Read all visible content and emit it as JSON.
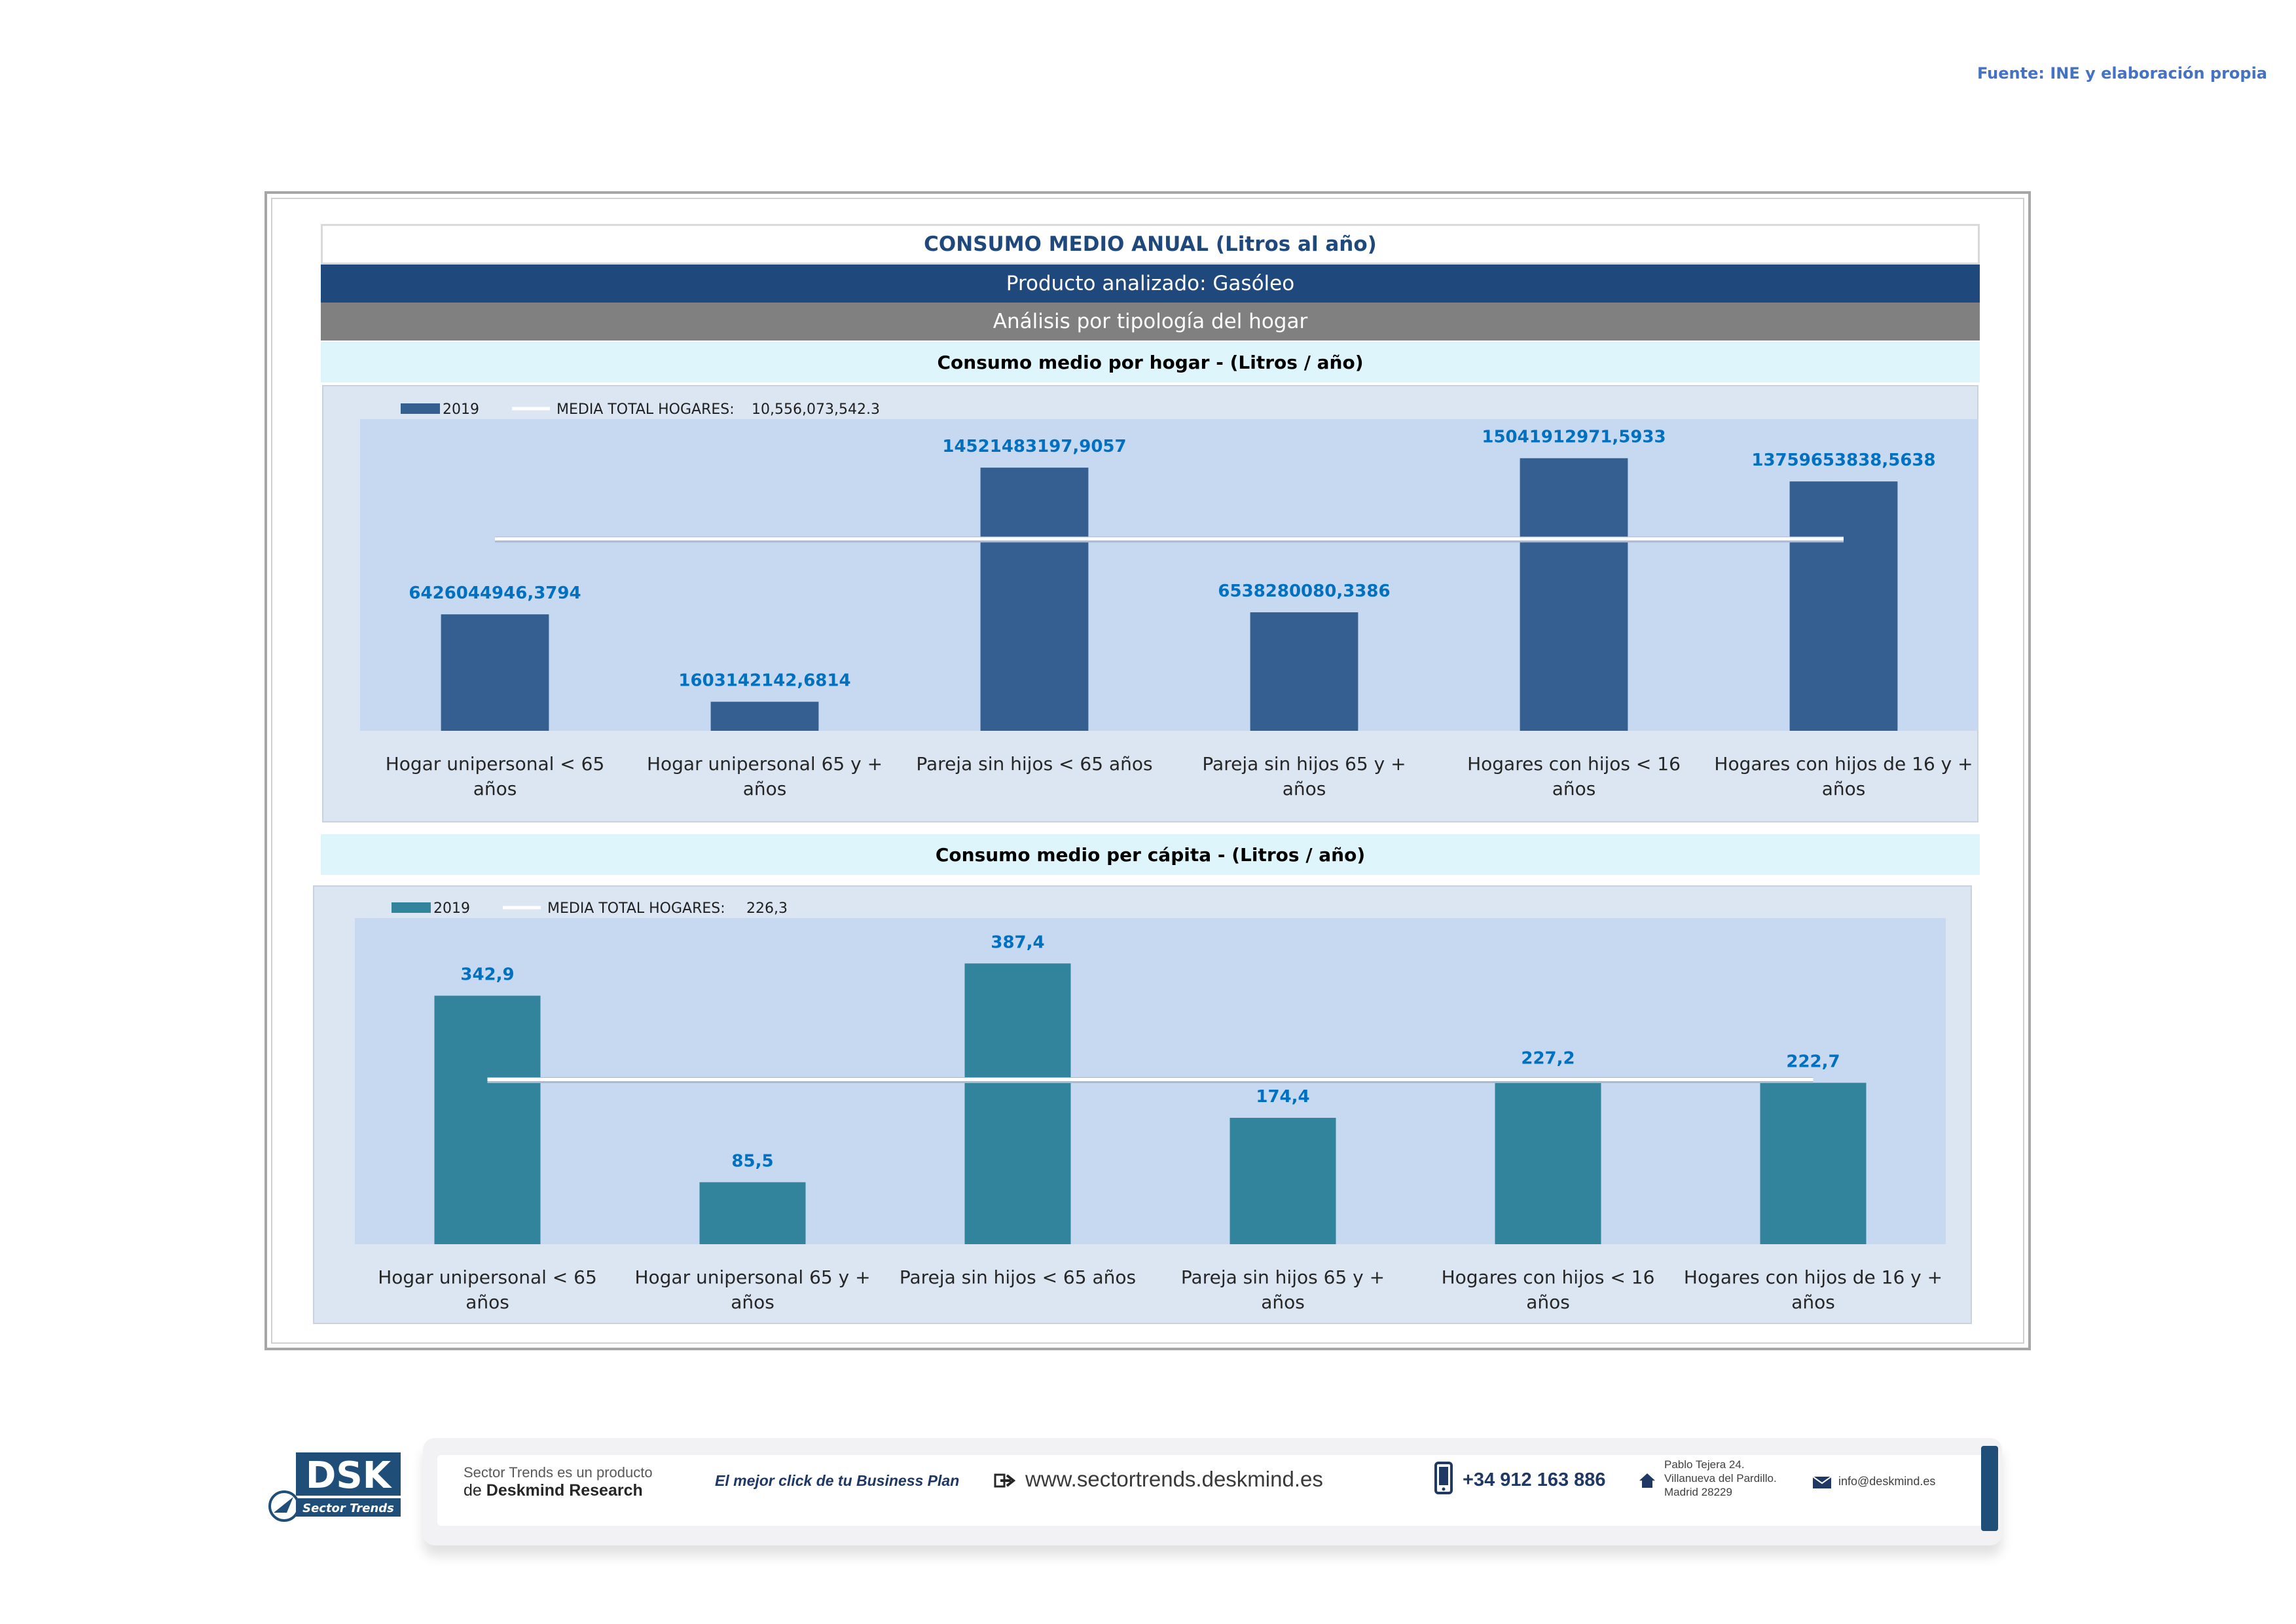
{
  "source": "Fuente: INE y elaboración propia",
  "header": {
    "title": "CONSUMO MEDIO ANUAL (Litros al año)",
    "product": "Producto analizado: Gasóleo",
    "analysis": "Análisis por tipología del hogar"
  },
  "colors": {
    "navy": "#1f497d",
    "gray": "#808080",
    "subtitle_band": "#ddf5fb",
    "panel_bg": "#dce6f2",
    "plot_bg": "#c6d9f1",
    "bar_household": "#355e91",
    "bar_percapita": "#31849b",
    "label_blue": "#0070c0",
    "average_line": "#ffffff"
  },
  "chart_data": [
    {
      "type": "bar",
      "subtitle": "Consumo medio por hogar -  (Litros / año)",
      "categories": [
        "Hogar unipersonal < 65 años",
        "Hogar unipersonal  65 y + años",
        "Pareja sin hijos < 65 años",
        "Pareja sin hijos 65 y + años",
        "Hogares con hijos < 16 años",
        "Hogares con hijos de 16 y + años"
      ],
      "series": [
        {
          "name": "2019",
          "values": [
            6426044946.3794,
            1603142142.6814,
            14521483197.9057,
            6538280080.3386,
            15041912971.5933,
            13759653838.5638
          ],
          "labels": [
            "6426044946,3794",
            "1603142142,6814",
            "14521483197,9057",
            "6538280080,3386",
            "15041912971,5933",
            "13759653838,5638"
          ]
        }
      ],
      "average": {
        "name": "MEDIA TOTAL  HOGARES:",
        "value": 10556073542.3,
        "label": "10,556,073,542.3"
      },
      "ylim": [
        0,
        17200000000
      ],
      "grid": false,
      "legend": "top-left"
    },
    {
      "type": "bar",
      "subtitle": "Consumo medio per cápita -  (Litros / año)",
      "categories": [
        "Hogar unipersonal < 65 años",
        "Hogar unipersonal  65 y + años",
        "Pareja sin hijos < 65 años",
        "Pareja sin hijos 65 y + años",
        "Hogares con hijos < 16 años",
        "Hogares con hijos de 16 y + años"
      ],
      "series": [
        {
          "name": "2019",
          "values": [
            342.9,
            85.5,
            387.4,
            174.4,
            227.2,
            222.7
          ],
          "labels": [
            "342,9",
            "85,5",
            "387,4",
            "174,4",
            "227,2",
            "222,7"
          ]
        }
      ],
      "average": {
        "name": "MEDIA TOTAL  HOGARES:",
        "value": 226.3,
        "label": "226,3"
      },
      "ylim": [
        0,
        450
      ],
      "grid": false,
      "legend": "top-left"
    }
  ],
  "footer": {
    "product_line1": "Sector Trends es un producto",
    "product_line2_prefix": "de ",
    "product_line2_brand": "Deskmind Research",
    "slogan": "El mejor click de tu Business Plan",
    "website": "www.sectortrends.deskmind.es",
    "phone": "+34 912 163 886",
    "address": "Pablo Tejera 24.\nVillanueva del Pardillo.\nMadrid 28229",
    "email": "info@deskmind.es",
    "logo_text": "DSK",
    "logo_subtitle": "Sector Trends"
  },
  "icons": {
    "web": "arrow-right-icon",
    "phone": "mobile-phone-icon",
    "address": "home-icon",
    "email": "envelope-icon"
  }
}
